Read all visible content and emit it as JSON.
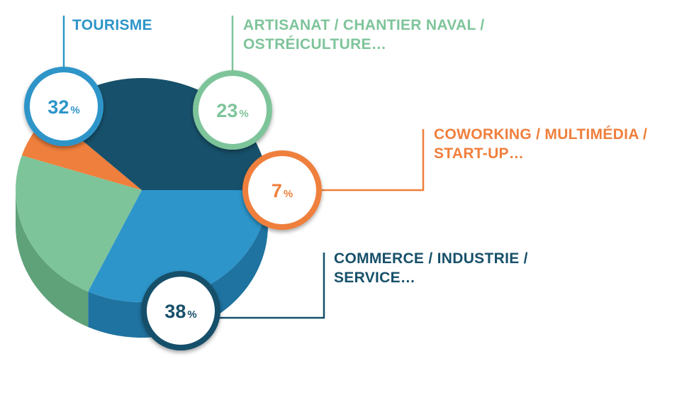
{
  "chart_data": {
    "type": "pie",
    "style": "3d",
    "legend": "none",
    "slices": [
      {
        "key": "tourisme",
        "label_lines": [
          "TOURISME"
        ],
        "value": 32,
        "unit": "%",
        "color": "#2d95c9",
        "side_color": "#1f73a0"
      },
      {
        "key": "artisanat",
        "label_lines": [
          "ARTISANAT / CHANTIER NAVAL /",
          "OSTRÉICULTURE…"
        ],
        "value": 23,
        "unit": "%",
        "color": "#7ec49a",
        "side_color": "#5fa27a"
      },
      {
        "key": "coworking",
        "label_lines": [
          "COWORKING / MULTIMÉDIA /",
          "START-UP…"
        ],
        "value": 7,
        "unit": "%",
        "color": "#ef7f3c",
        "side_color": "#c6612a"
      },
      {
        "key": "commerce",
        "label_lines": [
          "COMMERCE / INDUSTRIE /",
          "SERVICE…"
        ],
        "value": 38,
        "unit": "%",
        "color": "#17506a",
        "side_color": "#0e3446"
      }
    ]
  }
}
